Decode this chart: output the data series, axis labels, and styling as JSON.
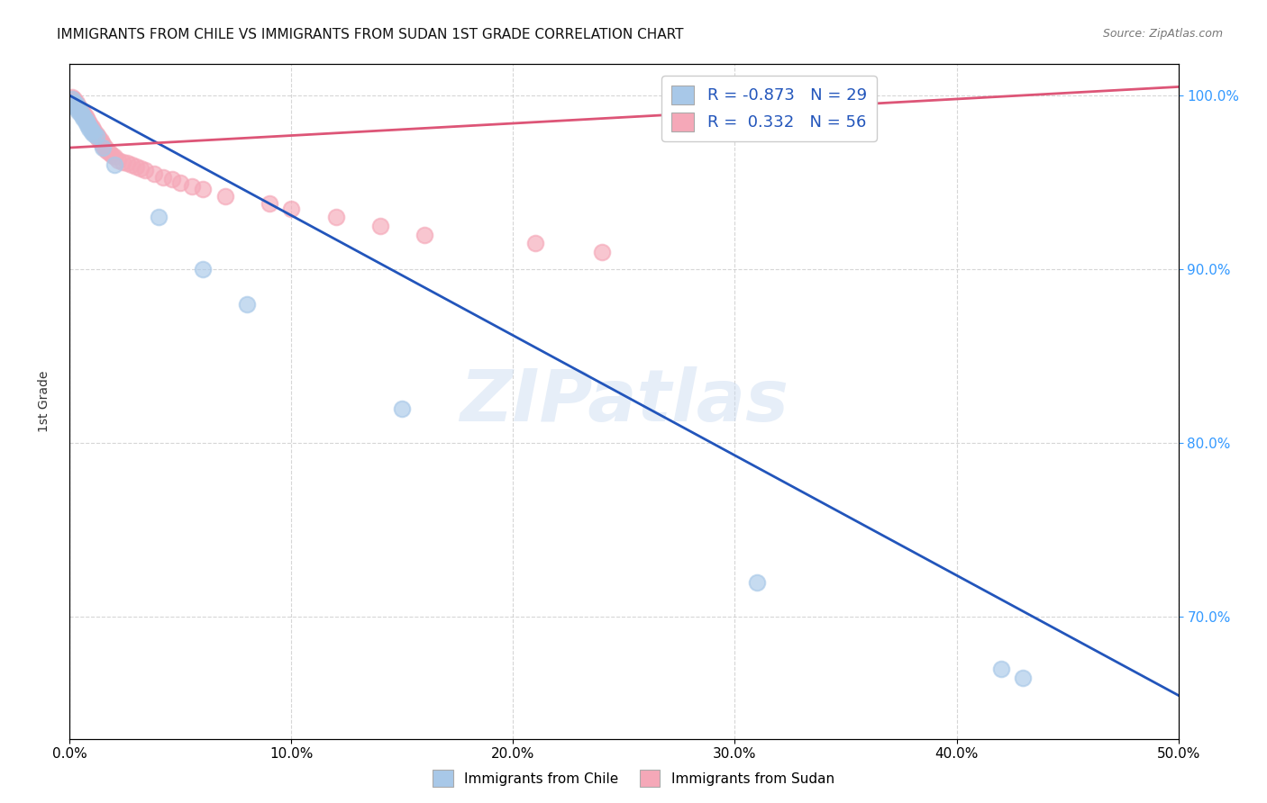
{
  "title": "IMMIGRANTS FROM CHILE VS IMMIGRANTS FROM SUDAN 1ST GRADE CORRELATION CHART",
  "source": "Source: ZipAtlas.com",
  "ylabel": "1st Grade",
  "watermark": "ZIPatlas",
  "legend_entries": [
    {
      "label": "Immigrants from Chile",
      "color": "#a8c8e8",
      "R": "-0.873",
      "N": "29"
    },
    {
      "label": "Immigrants from Sudan",
      "color": "#f5a8b8",
      "R": "0.332",
      "N": "56"
    }
  ],
  "xmin": 0.0,
  "xmax": 0.5,
  "ymin": 0.63,
  "ymax": 1.018,
  "chile_color": "#a8c8e8",
  "sudan_color": "#f5a8b8",
  "trendline_chile_color": "#2255bb",
  "trendline_sudan_color": "#dd5577",
  "grid_color": "#cccccc",
  "background_color": "#ffffff",
  "right_tick_color": "#3399ff",
  "chile_trendline_x0": 0.0,
  "chile_trendline_y0": 1.0,
  "chile_trendline_x1": 0.5,
  "chile_trendline_y1": 0.655,
  "sudan_trendline_x0": 0.0,
  "sudan_trendline_y0": 0.97,
  "sudan_trendline_x1": 0.5,
  "sudan_trendline_y1": 1.005,
  "chile_scatter_x": [
    0.001,
    0.002,
    0.003,
    0.003,
    0.004,
    0.004,
    0.005,
    0.005,
    0.006,
    0.006,
    0.007,
    0.007,
    0.008,
    0.008,
    0.009,
    0.009,
    0.01,
    0.01,
    0.011,
    0.012,
    0.015,
    0.02,
    0.04,
    0.06,
    0.08,
    0.15,
    0.31,
    0.42,
    0.43
  ],
  "chile_scatter_y": [
    0.998,
    0.996,
    0.995,
    0.993,
    0.992,
    0.991,
    0.99,
    0.989,
    0.988,
    0.987,
    0.986,
    0.985,
    0.984,
    0.983,
    0.982,
    0.981,
    0.98,
    0.979,
    0.978,
    0.977,
    0.97,
    0.96,
    0.93,
    0.9,
    0.88,
    0.82,
    0.72,
    0.67,
    0.665
  ],
  "sudan_scatter_x": [
    0.001,
    0.002,
    0.002,
    0.003,
    0.003,
    0.004,
    0.004,
    0.005,
    0.005,
    0.006,
    0.006,
    0.007,
    0.007,
    0.008,
    0.008,
    0.009,
    0.009,
    0.01,
    0.01,
    0.011,
    0.011,
    0.012,
    0.012,
    0.013,
    0.013,
    0.014,
    0.014,
    0.015,
    0.015,
    0.016,
    0.016,
    0.017,
    0.018,
    0.019,
    0.02,
    0.022,
    0.024,
    0.026,
    0.028,
    0.03,
    0.032,
    0.034,
    0.038,
    0.042,
    0.046,
    0.05,
    0.055,
    0.06,
    0.07,
    0.09,
    0.1,
    0.12,
    0.14,
    0.16,
    0.21,
    0.24
  ],
  "sudan_scatter_y": [
    0.999,
    0.998,
    0.997,
    0.996,
    0.995,
    0.994,
    0.993,
    0.992,
    0.991,
    0.99,
    0.989,
    0.988,
    0.987,
    0.986,
    0.985,
    0.984,
    0.983,
    0.982,
    0.981,
    0.98,
    0.979,
    0.978,
    0.977,
    0.976,
    0.975,
    0.974,
    0.973,
    0.972,
    0.971,
    0.97,
    0.969,
    0.968,
    0.967,
    0.966,
    0.965,
    0.963,
    0.962,
    0.961,
    0.96,
    0.959,
    0.958,
    0.957,
    0.955,
    0.953,
    0.952,
    0.95,
    0.948,
    0.946,
    0.942,
    0.938,
    0.935,
    0.93,
    0.925,
    0.92,
    0.915,
    0.91
  ]
}
